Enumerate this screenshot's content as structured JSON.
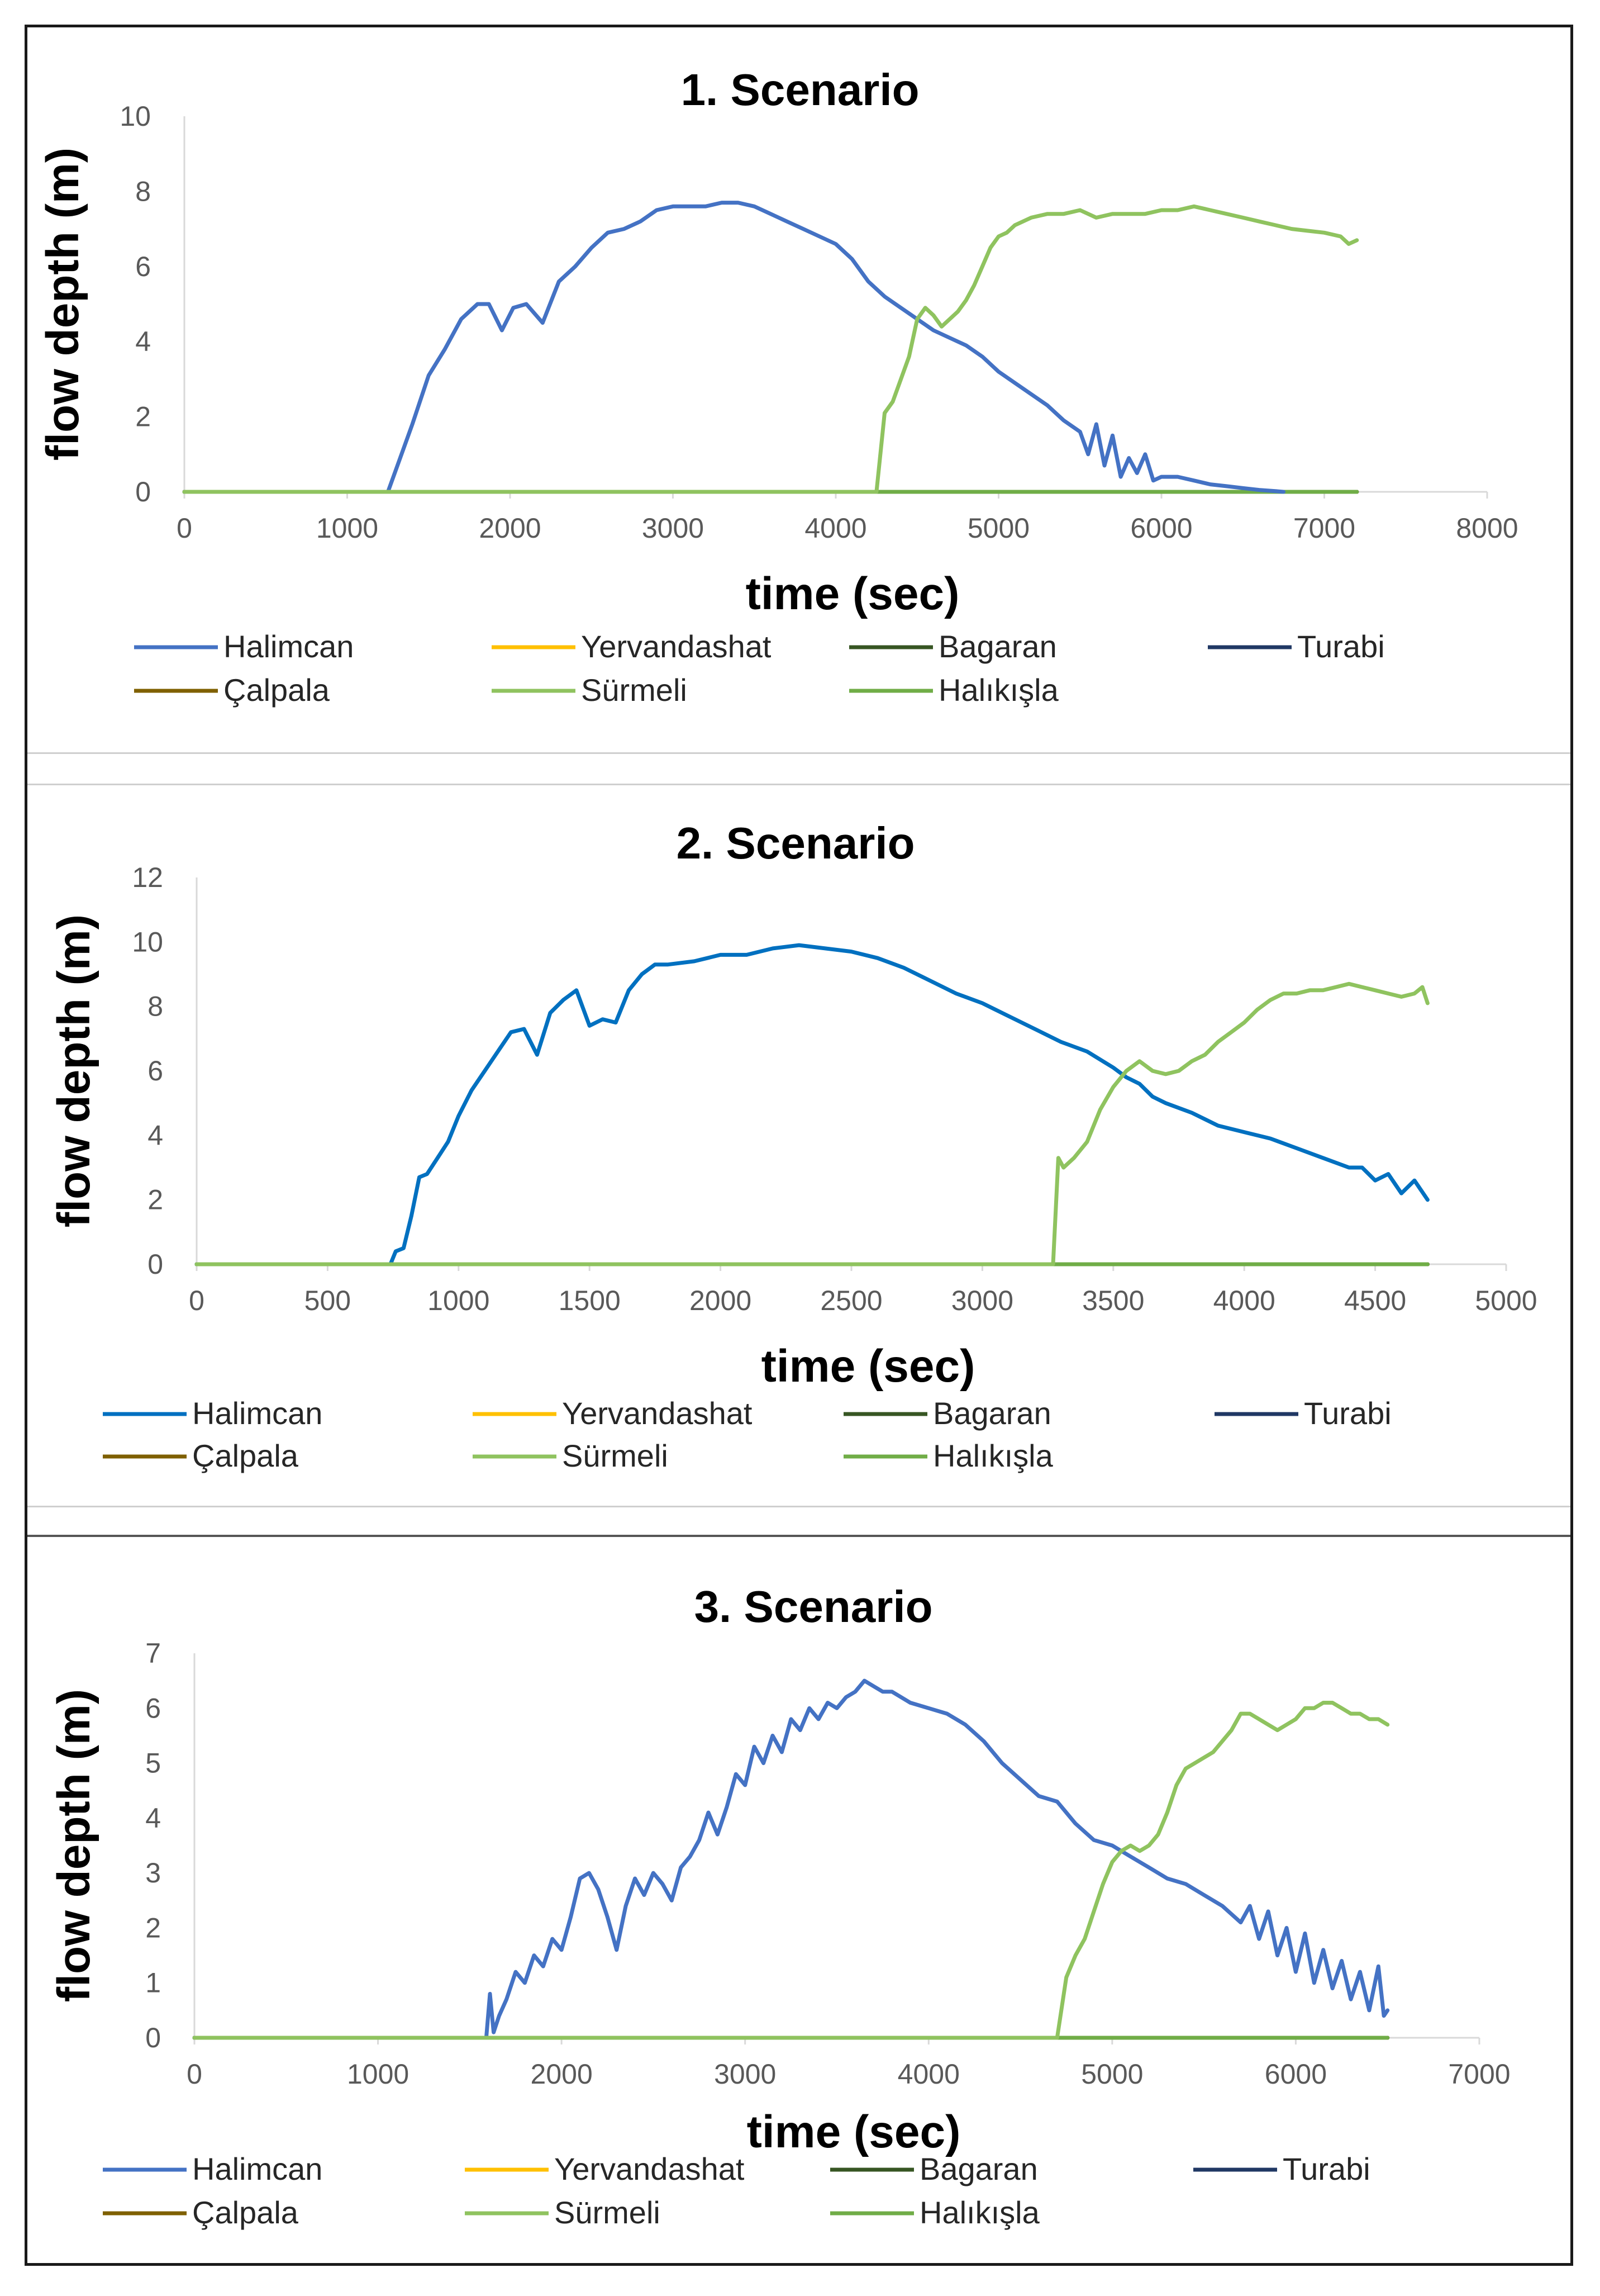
{
  "chart_data": [
    {
      "type": "line",
      "title": "1. Scenario",
      "xlabel": "time (sec)",
      "ylabel": "flow depth (m)",
      "xlim": [
        0,
        8000
      ],
      "ylim": [
        0,
        10
      ],
      "xticks": [
        0,
        1000,
        2000,
        3000,
        4000,
        5000,
        6000,
        7000,
        8000
      ],
      "yticks": [
        0,
        2,
        4,
        6,
        8,
        10
      ],
      "series": [
        {
          "name": "Halimcan",
          "color": "#4472C4",
          "x": [
            0,
            1250,
            1300,
            1400,
            1500,
            1600,
            1700,
            1800,
            1870,
            1950,
            2020,
            2100,
            2200,
            2300,
            2400,
            2500,
            2600,
            2700,
            2800,
            2900,
            3000,
            3100,
            3200,
            3300,
            3400,
            3500,
            3600,
            3700,
            3800,
            3900,
            4000,
            4100,
            4200,
            4300,
            4400,
            4500,
            4600,
            4700,
            4800,
            4900,
            5000,
            5100,
            5200,
            5300,
            5400,
            5500,
            5550,
            5600,
            5650,
            5700,
            5750,
            5800,
            5850,
            5900,
            5950,
            6000,
            6100,
            6200,
            6300,
            6400,
            6500,
            6600,
            6700,
            6750
          ],
          "y": [
            0,
            0,
            0.6,
            1.8,
            3.1,
            3.8,
            4.6,
            5.0,
            5.0,
            4.3,
            4.9,
            5.0,
            4.5,
            5.6,
            6.0,
            6.5,
            6.9,
            7.0,
            7.2,
            7.5,
            7.6,
            7.6,
            7.6,
            7.7,
            7.7,
            7.6,
            7.4,
            7.2,
            7.0,
            6.8,
            6.6,
            6.2,
            5.6,
            5.2,
            4.9,
            4.6,
            4.3,
            4.1,
            3.9,
            3.6,
            3.2,
            2.9,
            2.6,
            2.3,
            1.9,
            1.6,
            1.0,
            1.8,
            0.7,
            1.5,
            0.4,
            0.9,
            0.5,
            1.0,
            0.3,
            0.4,
            0.4,
            0.3,
            0.2,
            0.15,
            0.1,
            0.05,
            0.02,
            0
          ]
        },
        {
          "name": "Yervandashat",
          "color": "#FFC000",
          "x": [
            0,
            7200
          ],
          "y": [
            0,
            0
          ]
        },
        {
          "name": "Bagaran",
          "color": "#375623",
          "x": [
            0,
            7200
          ],
          "y": [
            0,
            0
          ]
        },
        {
          "name": "Turabi",
          "color": "#203864",
          "x": [
            0,
            7200
          ],
          "y": [
            0,
            0
          ]
        },
        {
          "name": "Çalpala",
          "color": "#7F6000",
          "x": [
            0,
            7200
          ],
          "y": [
            0,
            0
          ]
        },
        {
          "name": "Sürmeli",
          "color": "#8FC35F",
          "x": [
            0,
            4250,
            4300,
            4350,
            4400,
            4450,
            4500,
            4550,
            4600,
            4650,
            4700,
            4750,
            4800,
            4850,
            4900,
            4950,
            5000,
            5050,
            5100,
            5150,
            5200,
            5300,
            5400,
            5500,
            5600,
            5700,
            5800,
            5900,
            6000,
            6100,
            6200,
            6300,
            6400,
            6500,
            6600,
            6700,
            6800,
            6900,
            7000,
            7100,
            7150,
            7200
          ],
          "y": [
            0,
            0,
            2.1,
            2.4,
            3.0,
            3.6,
            4.6,
            4.9,
            4.7,
            4.4,
            4.6,
            4.8,
            5.1,
            5.5,
            6.0,
            6.5,
            6.8,
            6.9,
            7.1,
            7.2,
            7.3,
            7.4,
            7.4,
            7.5,
            7.3,
            7.4,
            7.4,
            7.4,
            7.5,
            7.5,
            7.6,
            7.5,
            7.4,
            7.3,
            7.2,
            7.1,
            7.0,
            6.95,
            6.9,
            6.8,
            6.6,
            6.7
          ]
        },
        {
          "name": "Halıkışla",
          "color": "#70AD47",
          "x": [
            0,
            7200
          ],
          "y": [
            0,
            0
          ]
        }
      ],
      "legend": "bottom"
    },
    {
      "type": "line",
      "title": "2. Scenario",
      "xlabel": "time (sec)",
      "ylabel": "flow depth (m)",
      "xlim": [
        0,
        5000
      ],
      "ylim": [
        0,
        12
      ],
      "xticks": [
        0,
        500,
        1000,
        1500,
        2000,
        2500,
        3000,
        3500,
        4000,
        4500,
        5000
      ],
      "yticks": [
        0,
        2,
        4,
        6,
        8,
        10,
        12
      ],
      "series": [
        {
          "name": "Halimcan",
          "color": "#0070C0",
          "x": [
            0,
            740,
            760,
            790,
            820,
            850,
            880,
            920,
            960,
            1000,
            1050,
            1100,
            1150,
            1200,
            1250,
            1300,
            1350,
            1400,
            1450,
            1500,
            1550,
            1600,
            1650,
            1700,
            1750,
            1800,
            1900,
            2000,
            2100,
            2200,
            2300,
            2400,
            2500,
            2600,
            2700,
            2800,
            2900,
            3000,
            3100,
            3200,
            3300,
            3400,
            3500,
            3550,
            3600,
            3650,
            3700,
            3800,
            3900,
            4000,
            4100,
            4200,
            4300,
            4400,
            4450,
            4500,
            4550,
            4600,
            4650,
            4700
          ],
          "y": [
            0,
            0,
            0.4,
            0.5,
            1.5,
            2.7,
            2.8,
            3.3,
            3.8,
            4.6,
            5.4,
            6.0,
            6.6,
            7.2,
            7.3,
            6.5,
            7.8,
            8.2,
            8.5,
            7.4,
            7.6,
            7.5,
            8.5,
            9.0,
            9.3,
            9.3,
            9.4,
            9.6,
            9.6,
            9.8,
            9.9,
            9.8,
            9.7,
            9.5,
            9.2,
            8.8,
            8.4,
            8.1,
            7.7,
            7.3,
            6.9,
            6.6,
            6.1,
            5.8,
            5.6,
            5.2,
            5.0,
            4.7,
            4.3,
            4.1,
            3.9,
            3.6,
            3.3,
            3.0,
            3.0,
            2.6,
            2.8,
            2.2,
            2.6,
            2.0
          ]
        },
        {
          "name": "Yervandashat",
          "color": "#FFC000",
          "x": [
            0,
            4700
          ],
          "y": [
            0,
            0
          ]
        },
        {
          "name": "Bagaran",
          "color": "#375623",
          "x": [
            0,
            4700
          ],
          "y": [
            0,
            0
          ]
        },
        {
          "name": "Turabi",
          "color": "#203864",
          "x": [
            0,
            4700
          ],
          "y": [
            0,
            0
          ]
        },
        {
          "name": "Çalpala",
          "color": "#7F6000",
          "x": [
            0,
            4700
          ],
          "y": [
            0,
            0
          ]
        },
        {
          "name": "Sürmeli",
          "color": "#8FC35F",
          "x": [
            0,
            3270,
            3290,
            3310,
            3350,
            3400,
            3450,
            3500,
            3550,
            3600,
            3650,
            3700,
            3750,
            3800,
            3850,
            3900,
            3950,
            4000,
            4050,
            4100,
            4150,
            4200,
            4250,
            4300,
            4350,
            4400,
            4450,
            4500,
            4550,
            4600,
            4650,
            4680,
            4700
          ],
          "y": [
            0,
            0,
            3.3,
            3.0,
            3.3,
            3.8,
            4.8,
            5.5,
            6.0,
            6.3,
            6.0,
            5.9,
            6.0,
            6.3,
            6.5,
            6.9,
            7.2,
            7.5,
            7.9,
            8.2,
            8.4,
            8.4,
            8.5,
            8.5,
            8.6,
            8.7,
            8.6,
            8.5,
            8.4,
            8.3,
            8.4,
            8.6,
            8.1
          ]
        },
        {
          "name": "Halıkışla",
          "color": "#70AD47",
          "x": [
            0,
            4700
          ],
          "y": [
            0,
            0
          ]
        }
      ],
      "legend": "bottom"
    },
    {
      "type": "line",
      "title": "3. Scenario",
      "xlabel": "time (sec)",
      "ylabel": "flow depth (m)",
      "xlim": [
        0,
        7000
      ],
      "ylim": [
        0,
        7
      ],
      "xticks": [
        0,
        1000,
        2000,
        3000,
        4000,
        5000,
        6000,
        7000
      ],
      "yticks": [
        0,
        1,
        2,
        3,
        4,
        5,
        6,
        7
      ],
      "series": [
        {
          "name": "Halimcan",
          "color": "#4472C4",
          "x": [
            0,
            1590,
            1610,
            1630,
            1660,
            1700,
            1750,
            1800,
            1850,
            1900,
            1950,
            2000,
            2050,
            2100,
            2150,
            2200,
            2250,
            2300,
            2350,
            2400,
            2450,
            2500,
            2550,
            2600,
            2650,
            2700,
            2750,
            2800,
            2850,
            2900,
            2950,
            3000,
            3050,
            3100,
            3150,
            3200,
            3250,
            3300,
            3350,
            3400,
            3450,
            3500,
            3550,
            3600,
            3650,
            3700,
            3750,
            3800,
            3900,
            4000,
            4100,
            4200,
            4300,
            4400,
            4500,
            4600,
            4700,
            4800,
            4900,
            5000,
            5100,
            5200,
            5300,
            5400,
            5500,
            5600,
            5700,
            5750,
            5800,
            5850,
            5900,
            5950,
            6000,
            6050,
            6100,
            6150,
            6200,
            6250,
            6300,
            6350,
            6400,
            6450,
            6480,
            6500
          ],
          "y": [
            0,
            0,
            0.8,
            0.1,
            0.4,
            0.7,
            1.2,
            1.0,
            1.5,
            1.3,
            1.8,
            1.6,
            2.2,
            2.9,
            3.0,
            2.7,
            2.2,
            1.6,
            2.4,
            2.9,
            2.6,
            3.0,
            2.8,
            2.5,
            3.1,
            3.3,
            3.6,
            4.1,
            3.7,
            4.2,
            4.8,
            4.6,
            5.3,
            5.0,
            5.5,
            5.2,
            5.8,
            5.6,
            6.0,
            5.8,
            6.1,
            6.0,
            6.2,
            6.3,
            6.5,
            6.4,
            6.3,
            6.3,
            6.1,
            6.0,
            5.9,
            5.7,
            5.4,
            5.0,
            4.7,
            4.4,
            4.3,
            3.9,
            3.6,
            3.5,
            3.3,
            3.1,
            2.9,
            2.8,
            2.6,
            2.4,
            2.1,
            2.4,
            1.8,
            2.3,
            1.5,
            2.0,
            1.2,
            1.9,
            1.0,
            1.6,
            0.9,
            1.4,
            0.7,
            1.2,
            0.5,
            1.3,
            0.4,
            0.5
          ]
        },
        {
          "name": "Yervandashat",
          "color": "#FFC000",
          "x": [
            0,
            6500
          ],
          "y": [
            0,
            0
          ]
        },
        {
          "name": "Bagaran",
          "color": "#375623",
          "x": [
            0,
            6500
          ],
          "y": [
            0,
            0
          ]
        },
        {
          "name": "Turabi",
          "color": "#203864",
          "x": [
            0,
            6500
          ],
          "y": [
            0,
            0
          ]
        },
        {
          "name": "Çalpala",
          "color": "#7F6000",
          "x": [
            0,
            6500
          ],
          "y": [
            0,
            0
          ]
        },
        {
          "name": "Sürmeli",
          "color": "#8FC35F",
          "x": [
            0,
            4700,
            4750,
            4800,
            4850,
            4900,
            4950,
            5000,
            5050,
            5100,
            5150,
            5200,
            5250,
            5300,
            5350,
            5400,
            5450,
            5500,
            5550,
            5600,
            5650,
            5700,
            5750,
            5800,
            5850,
            5900,
            5950,
            6000,
            6050,
            6100,
            6150,
            6200,
            6250,
            6300,
            6350,
            6400,
            6450,
            6500
          ],
          "y": [
            0,
            0,
            1.1,
            1.5,
            1.8,
            2.3,
            2.8,
            3.2,
            3.4,
            3.5,
            3.4,
            3.5,
            3.7,
            4.1,
            4.6,
            4.9,
            5.0,
            5.1,
            5.2,
            5.4,
            5.6,
            5.9,
            5.9,
            5.8,
            5.7,
            5.6,
            5.7,
            5.8,
            6.0,
            6.0,
            6.1,
            6.1,
            6.0,
            5.9,
            5.9,
            5.8,
            5.8,
            5.7
          ]
        },
        {
          "name": "Halıkışla",
          "color": "#70AD47",
          "x": [
            0,
            6500
          ],
          "y": [
            0,
            0
          ]
        }
      ],
      "legend": "bottom"
    }
  ]
}
